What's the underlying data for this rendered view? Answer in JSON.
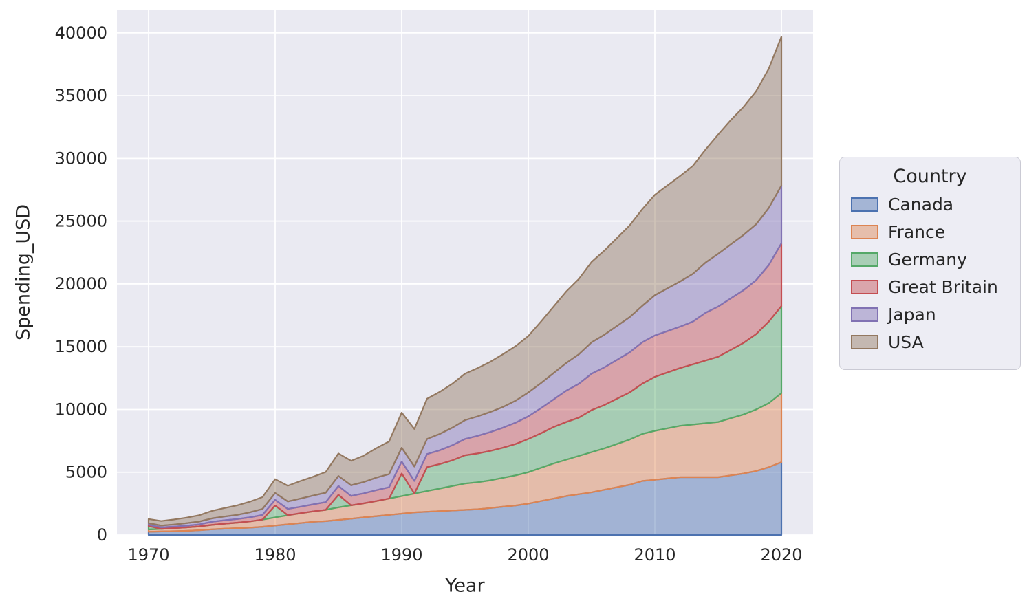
{
  "chart_data": {
    "type": "area",
    "stacked": true,
    "title": "",
    "xlabel": "Year",
    "ylabel": "Spending_USD",
    "legend_title": "Country",
    "legend_position": "right",
    "grid": true,
    "background_color": "#eaeaf2",
    "grid_color": "#ffffff",
    "text_color": "#262626",
    "fill_alpha": 0.45,
    "xlim": [
      1967.5,
      2022.5
    ],
    "ylim": [
      0,
      41800
    ],
    "x_ticks": [
      1970,
      1980,
      1990,
      2000,
      2010,
      2020
    ],
    "y_ticks": [
      0,
      5000,
      10000,
      15000,
      20000,
      25000,
      30000,
      35000,
      40000
    ],
    "x": [
      1970,
      1971,
      1972,
      1973,
      1974,
      1975,
      1976,
      1977,
      1978,
      1979,
      1980,
      1981,
      1982,
      1983,
      1984,
      1985,
      1986,
      1987,
      1988,
      1989,
      1990,
      1991,
      1992,
      1993,
      1994,
      1995,
      1996,
      1997,
      1998,
      1999,
      2000,
      2001,
      2002,
      2003,
      2004,
      2005,
      2006,
      2007,
      2008,
      2009,
      2010,
      2011,
      2012,
      2013,
      2014,
      2015,
      2016,
      2017,
      2018,
      2019,
      2020
    ],
    "series": [
      {
        "name": "Canada",
        "color": "#4c72b0",
        "values": [
          250,
          280,
          300,
          330,
          380,
          450,
          500,
          540,
          580,
          650,
          750,
          850,
          950,
          1050,
          1100,
          1200,
          1300,
          1400,
          1500,
          1600,
          1700,
          1800,
          1850,
          1900,
          1950,
          2000,
          2050,
          2150,
          2250,
          2350,
          2500,
          2700,
          2900,
          3100,
          3250,
          3400,
          3600,
          3800,
          4000,
          4300,
          4400,
          4500,
          4600,
          4600,
          4600,
          4600,
          4750,
          4900,
          5100,
          5400,
          5800
        ]
      },
      {
        "name": "France",
        "color": "#dd8452",
        "values": [
          190,
          210,
          240,
          270,
          300,
          350,
          400,
          440,
          500,
          570,
          650,
          720,
          780,
          830,
          900,
          1000,
          1060,
          1120,
          1200,
          1300,
          1400,
          1500,
          1650,
          1800,
          1950,
          2100,
          2150,
          2200,
          2300,
          2400,
          2500,
          2650,
          2800,
          2900,
          3050,
          3200,
          3300,
          3450,
          3600,
          3750,
          3900,
          4000,
          4100,
          4200,
          4300,
          4400,
          4550,
          4700,
          4900,
          5100,
          5500
        ]
      },
      {
        "name": "Germany",
        "color": "#55a868",
        "values": [
          270,
          0,
          0,
          0,
          0,
          0,
          0,
          0,
          0,
          0,
          950,
          0,
          0,
          0,
          0,
          1000,
          0,
          0,
          0,
          0,
          1800,
          0,
          1900,
          1950,
          2050,
          2250,
          2300,
          2350,
          2400,
          2500,
          2650,
          2750,
          2900,
          3000,
          3050,
          3350,
          3450,
          3600,
          3750,
          4000,
          4300,
          4450,
          4600,
          4800,
          5000,
          5200,
          5450,
          5700,
          6000,
          6500,
          6940
        ]
      },
      {
        "name": "Great Britain",
        "color": "#c44e52",
        "values": [
          100,
          110,
          125,
          140,
          160,
          250,
          270,
          290,
          320,
          380,
          450,
          500,
          520,
          560,
          620,
          700,
          750,
          800,
          870,
          900,
          950,
          1000,
          1050,
          1100,
          1200,
          1300,
          1400,
          1500,
          1600,
          1700,
          1800,
          2000,
          2200,
          2500,
          2700,
          2900,
          3000,
          3100,
          3200,
          3300,
          3300,
          3300,
          3300,
          3400,
          3800,
          4000,
          4100,
          4200,
          4300,
          4500,
          5000
        ]
      },
      {
        "name": "Japan",
        "color": "#8172b3",
        "values": [
          130,
          150,
          170,
          200,
          230,
          270,
          300,
          330,
          400,
          470,
          550,
          600,
          650,
          700,
          750,
          800,
          850,
          900,
          1000,
          1050,
          1100,
          1150,
          1200,
          1300,
          1400,
          1500,
          1550,
          1600,
          1650,
          1750,
          1900,
          2000,
          2100,
          2200,
          2350,
          2500,
          2600,
          2700,
          2800,
          2900,
          3200,
          3400,
          3600,
          3800,
          4000,
          4200,
          4300,
          4400,
          4450,
          4550,
          4600
        ]
      },
      {
        "name": "USA",
        "color": "#937860",
        "values": [
          330,
          360,
          400,
          440,
          500,
          600,
          680,
          760,
          850,
          950,
          1100,
          1250,
          1400,
          1500,
          1650,
          1800,
          1950,
          2100,
          2350,
          2600,
          2800,
          3000,
          3200,
          3350,
          3500,
          3700,
          3850,
          4000,
          4200,
          4350,
          4500,
          4900,
          5300,
          5700,
          6000,
          6400,
          6700,
          7000,
          7300,
          7700,
          8000,
          8200,
          8400,
          8600,
          9000,
          9500,
          9900,
          10200,
          10600,
          11100,
          11860
        ]
      }
    ]
  }
}
